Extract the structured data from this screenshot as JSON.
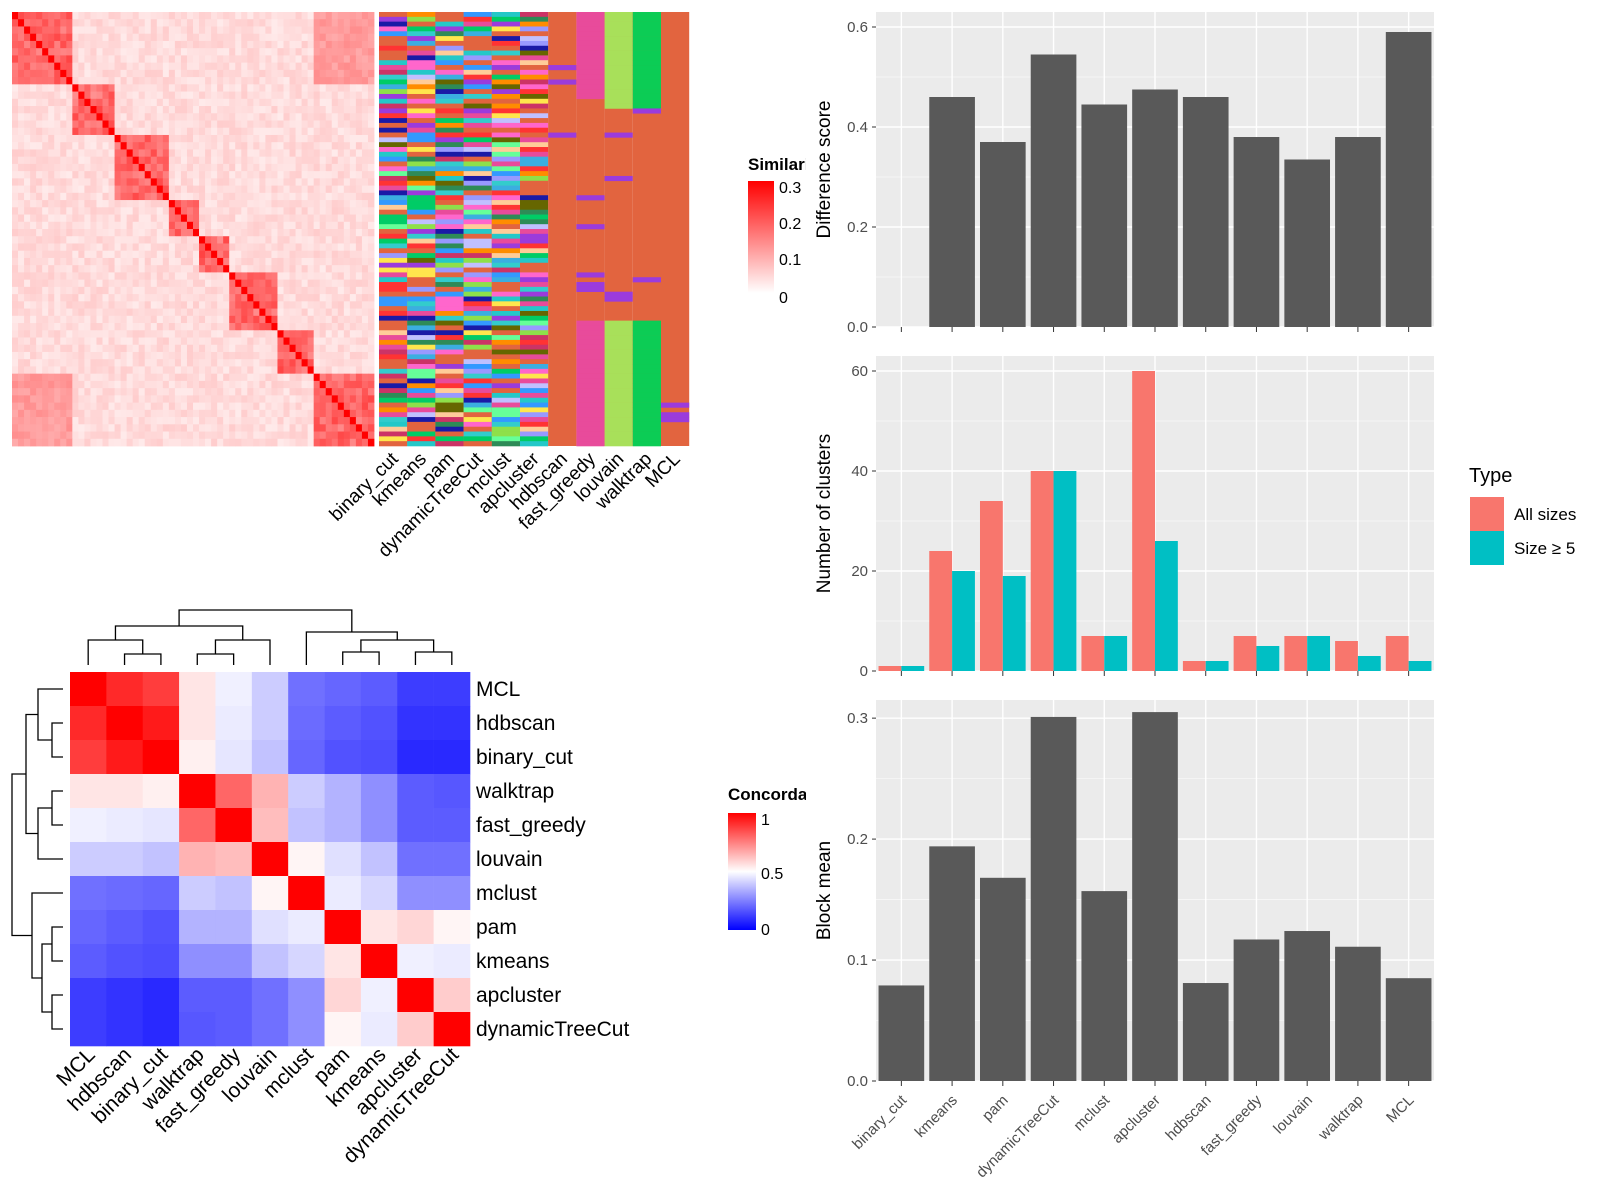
{
  "methods_order_bar": [
    "binary_cut",
    "kmeans",
    "pam",
    "dynamicTreeCut",
    "mclust",
    "apcluster",
    "hdbscan",
    "fast_greedy",
    "louvain",
    "walktrap",
    "MCL"
  ],
  "similarity_legend": {
    "title": "Similarity",
    "ticks": [
      "0.3",
      "0.2",
      "0.1",
      "0"
    ],
    "colors": [
      "#ff0000",
      "#ffffff"
    ]
  },
  "concordance_legend": {
    "title": "Concordance",
    "ticks": [
      "1",
      "0.5",
      "0"
    ],
    "colors": [
      "#ff0000",
      "#ffffff",
      "#0000ff"
    ]
  },
  "type_legend": {
    "title": "Type",
    "items": [
      {
        "label": "All sizes",
        "color": "#F8766D"
      },
      {
        "label": "Size ≥ 5",
        "color": "#00BFC4"
      }
    ]
  },
  "chart_data": [
    {
      "type": "heatmap",
      "name_hint": "similarity matrix with clustering annotation columns",
      "annotation_columns": [
        "binary_cut",
        "kmeans",
        "pam",
        "dynamicTreeCut",
        "mclust",
        "apcluster",
        "hdbscan",
        "fast_greedy",
        "louvain",
        "walktrap",
        "MCL"
      ],
      "legend_title": "Similarity",
      "legend_range": [
        0,
        0.3
      ]
    },
    {
      "type": "heatmap",
      "legend_title": "Concordance",
      "legend_range": [
        0,
        1
      ],
      "rows": [
        "MCL",
        "hdbscan",
        "binary_cut",
        "walktrap",
        "fast_greedy",
        "louvain",
        "mclust",
        "pam",
        "kmeans",
        "apcluster",
        "dynamicTreeCut"
      ],
      "columns": [
        "MCL",
        "hdbscan",
        "binary_cut",
        "walktrap",
        "fast_greedy",
        "louvain",
        "mclust",
        "pam",
        "kmeans",
        "apcluster",
        "dynamicTreeCut"
      ],
      "values": [
        [
          1.0,
          0.92,
          0.88,
          0.55,
          0.47,
          0.4,
          0.22,
          0.2,
          0.18,
          0.12,
          0.12
        ],
        [
          0.92,
          1.0,
          0.95,
          0.55,
          0.46,
          0.4,
          0.21,
          0.18,
          0.16,
          0.1,
          0.1
        ],
        [
          0.88,
          0.95,
          1.0,
          0.53,
          0.45,
          0.38,
          0.2,
          0.16,
          0.15,
          0.08,
          0.08
        ],
        [
          0.55,
          0.55,
          0.53,
          1.0,
          0.8,
          0.65,
          0.4,
          0.35,
          0.28,
          0.18,
          0.17
        ],
        [
          0.47,
          0.46,
          0.45,
          0.8,
          1.0,
          0.63,
          0.38,
          0.35,
          0.28,
          0.18,
          0.18
        ],
        [
          0.4,
          0.4,
          0.38,
          0.65,
          0.63,
          1.0,
          0.52,
          0.44,
          0.38,
          0.22,
          0.22
        ],
        [
          0.22,
          0.21,
          0.2,
          0.4,
          0.38,
          0.52,
          1.0,
          0.46,
          0.42,
          0.28,
          0.28
        ],
        [
          0.2,
          0.18,
          0.16,
          0.35,
          0.35,
          0.44,
          0.46,
          1.0,
          0.55,
          0.58,
          0.52
        ],
        [
          0.18,
          0.16,
          0.15,
          0.28,
          0.28,
          0.38,
          0.42,
          0.55,
          1.0,
          0.47,
          0.46
        ],
        [
          0.12,
          0.1,
          0.08,
          0.18,
          0.18,
          0.22,
          0.28,
          0.58,
          0.47,
          1.0,
          0.6
        ],
        [
          0.12,
          0.1,
          0.08,
          0.17,
          0.18,
          0.22,
          0.28,
          0.52,
          0.46,
          0.6,
          1.0
        ]
      ]
    },
    {
      "type": "bar",
      "categories": [
        "binary_cut",
        "kmeans",
        "pam",
        "dynamicTreeCut",
        "mclust",
        "apcluster",
        "hdbscan",
        "fast_greedy",
        "louvain",
        "walktrap",
        "MCL"
      ],
      "values": [
        0.0,
        0.46,
        0.37,
        0.545,
        0.445,
        0.475,
        0.46,
        0.38,
        0.335,
        0.38,
        0.59
      ],
      "ylabel": "Difference score",
      "ylim": [
        0,
        0.63
      ],
      "yticks": [
        "0.0",
        "0.2",
        "0.4",
        "0.6"
      ],
      "color": "#595959"
    },
    {
      "type": "bar",
      "categories": [
        "binary_cut",
        "kmeans",
        "pam",
        "dynamicTreeCut",
        "mclust",
        "apcluster",
        "hdbscan",
        "fast_greedy",
        "louvain",
        "walktrap",
        "MCL"
      ],
      "series": [
        {
          "name": "All sizes",
          "values": [
            1,
            24,
            34,
            40,
            7,
            60,
            2,
            7,
            7,
            6,
            7
          ]
        },
        {
          "name": "Size ≥ 5",
          "values": [
            1,
            20,
            19,
            40,
            7,
            26,
            2,
            5,
            7,
            3,
            2
          ]
        }
      ],
      "ylabel": "Number of clusters",
      "ylim": [
        0,
        63
      ],
      "yticks": [
        "0",
        "20",
        "40",
        "60"
      ],
      "legend_title": "Type"
    },
    {
      "type": "bar",
      "categories": [
        "binary_cut",
        "kmeans",
        "pam",
        "dynamicTreeCut",
        "mclust",
        "apcluster",
        "hdbscan",
        "fast_greedy",
        "louvain",
        "walktrap",
        "MCL"
      ],
      "values": [
        0.079,
        0.194,
        0.168,
        0.301,
        0.157,
        0.305,
        0.081,
        0.117,
        0.124,
        0.111,
        0.085
      ],
      "ylabel": "Block mean",
      "ylim": [
        0,
        0.315
      ],
      "yticks": [
        "0.0",
        "0.1",
        "0.2",
        "0.3"
      ],
      "color": "#595959"
    }
  ]
}
